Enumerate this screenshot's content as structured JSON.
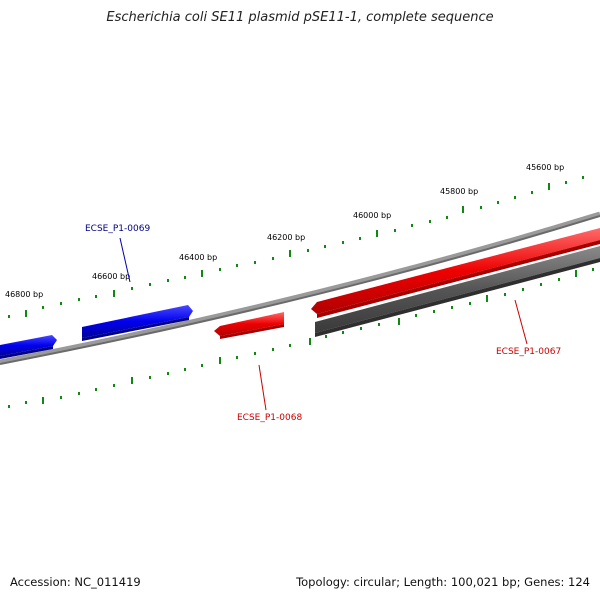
{
  "title": "Escherichia coli SE11 plasmid pSE11-1, complete sequence",
  "ticks": {
    "t45600": "45600 bp",
    "t45800": "45800 bp",
    "t46000": "46000 bp",
    "t46200": "46200 bp",
    "t46400": "46400 bp",
    "t46600": "46600 bp",
    "t46800": "46800 bp"
  },
  "genes": {
    "g0067": "ECSE_P1-0067",
    "g0068": "ECSE_P1-0068",
    "g0069": "ECSE_P1-0069"
  },
  "footer": {
    "accession": "Accession: NC_011419",
    "summary": "Topology: circular; Length: 100,021 bp; Genes: 124"
  },
  "colors": {
    "forward_strand": "#0000ee",
    "reverse_strand": "#ee0000",
    "other_track": "#555555",
    "ticks": "#118811",
    "backbone": "#7a7a7a"
  }
}
